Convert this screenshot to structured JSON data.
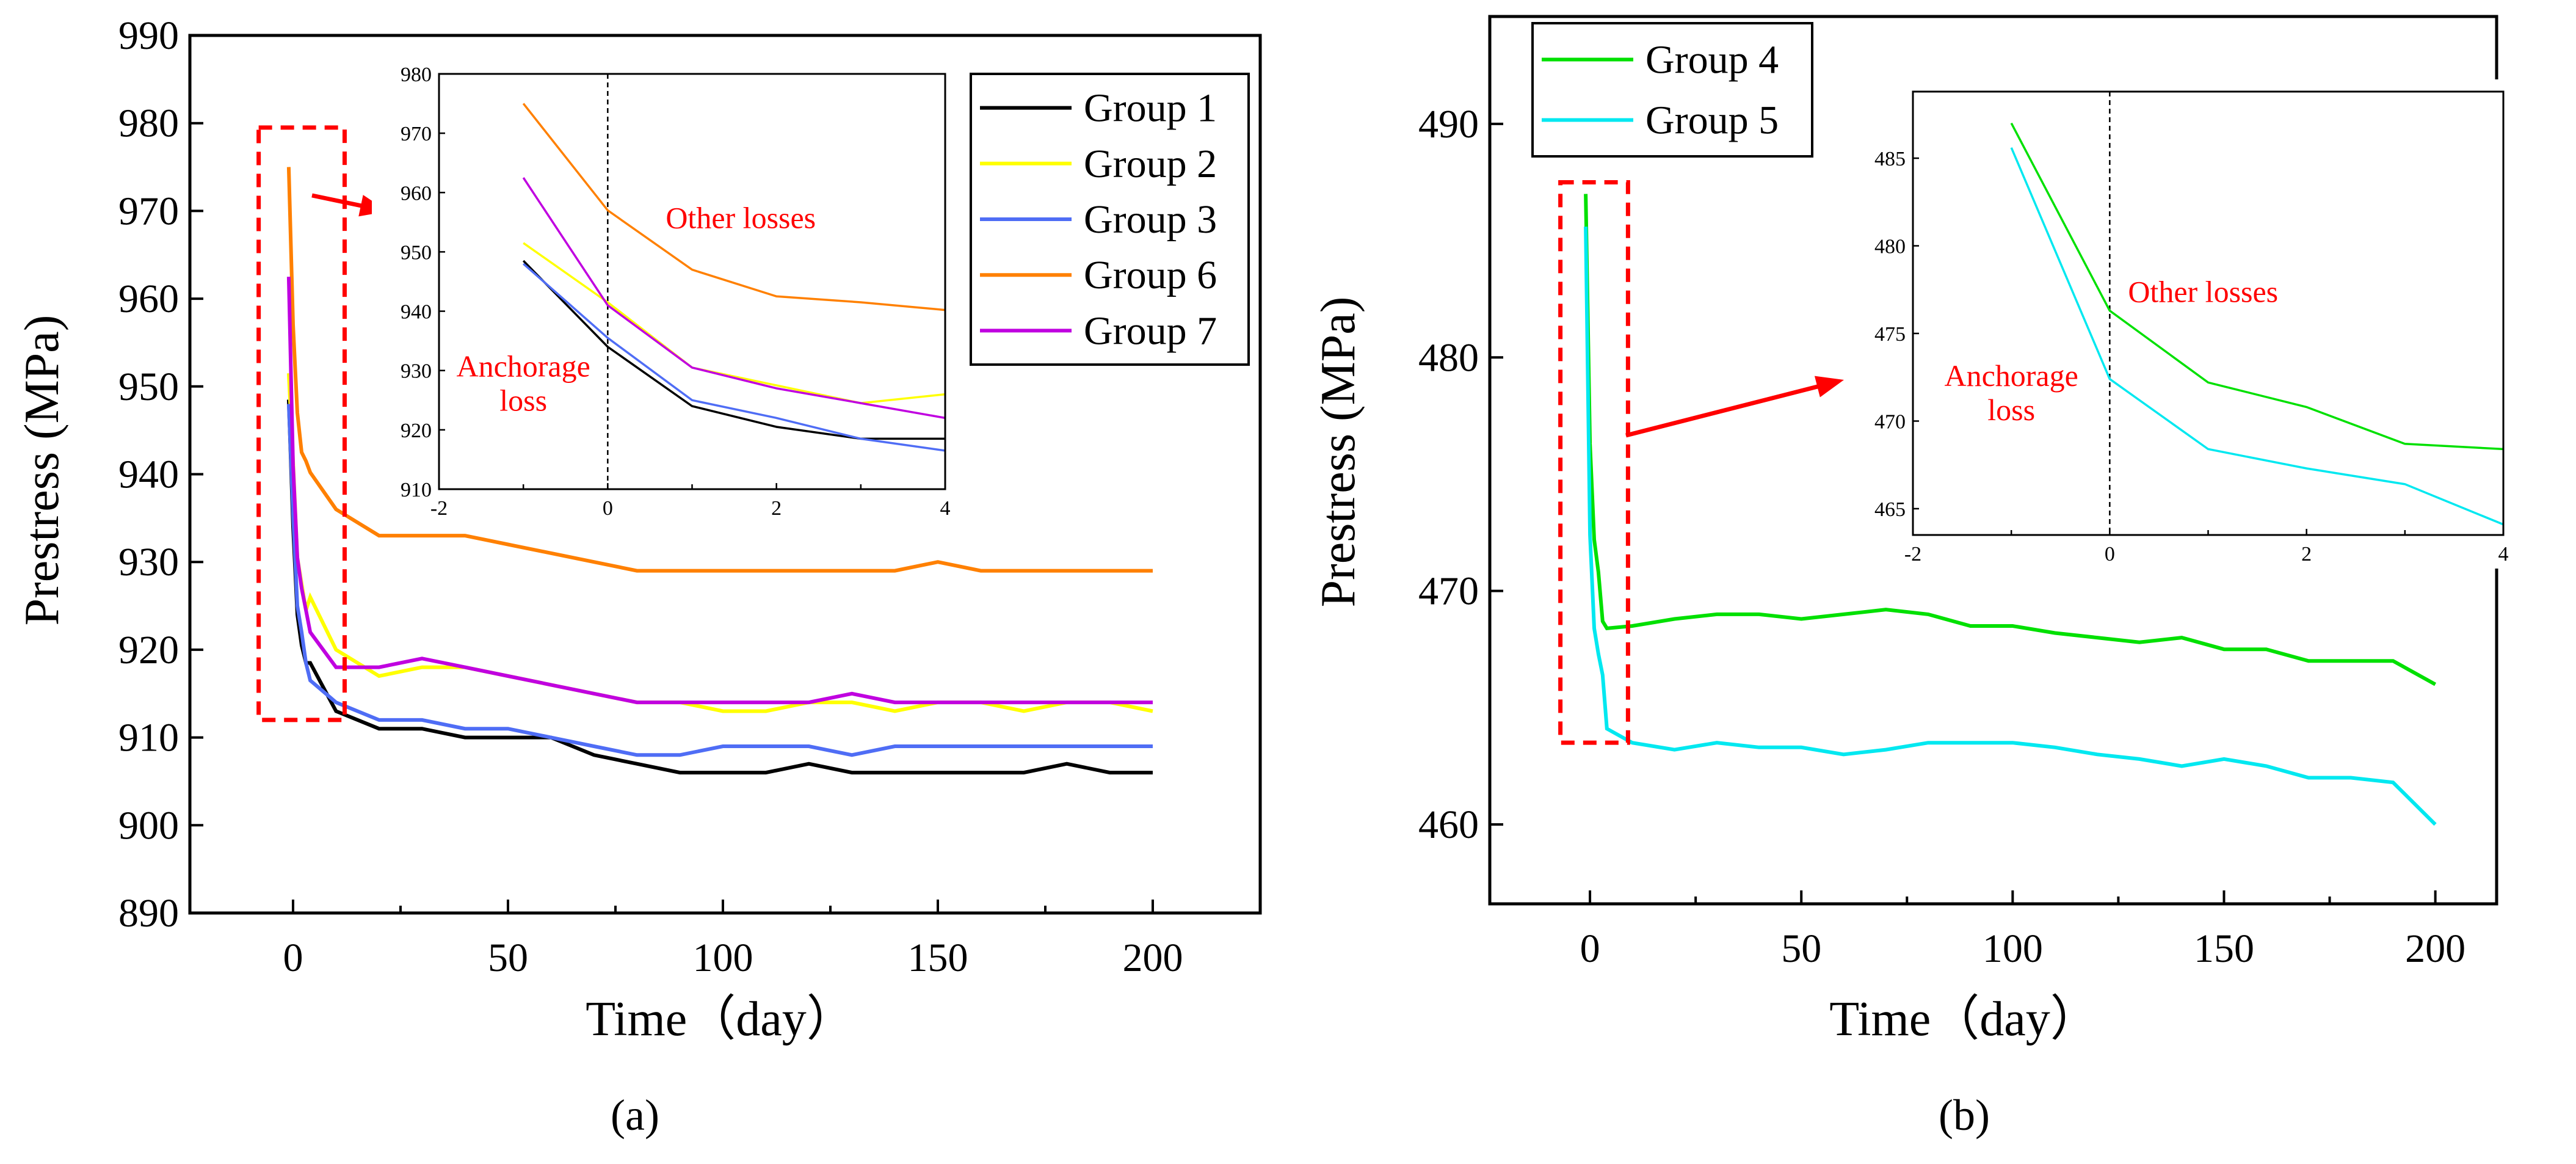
{
  "chart_data": [
    {
      "type": "line",
      "panel_label": "(a)",
      "xlabel": "Time（day）",
      "ylabel": "Prestress (MPa)",
      "xlim": [
        -24,
        225
      ],
      "ylim": [
        890,
        990
      ],
      "xticks": [
        0,
        50,
        100,
        150,
        200
      ],
      "yticks": [
        890,
        900,
        910,
        920,
        930,
        940,
        950,
        960,
        970,
        980,
        990
      ],
      "legend_position": "top-right",
      "x": [
        -1,
        0,
        1,
        2,
        3,
        4,
        10,
        20,
        30,
        40,
        50,
        60,
        70,
        80,
        90,
        100,
        110,
        120,
        130,
        140,
        150,
        160,
        170,
        180,
        190,
        200
      ],
      "series": [
        {
          "name": "Group 1",
          "color": "#000000",
          "values": [
            948.5,
            934,
            924,
            920.5,
            918.5,
            918.5,
            913,
            911,
            911,
            910,
            910,
            910,
            908,
            907,
            906,
            906,
            906,
            907,
            906,
            906,
            906,
            906,
            906,
            907,
            906,
            906
          ]
        },
        {
          "name": "Group 2",
          "color": "#ffff00",
          "values": [
            951.5,
            941.5,
            930.5,
            927.5,
            924.5,
            926,
            920,
            917,
            918,
            918,
            917,
            916,
            915,
            914,
            914,
            913,
            913,
            914,
            914,
            913,
            914,
            914,
            913,
            914,
            914,
            913
          ]
        },
        {
          "name": "Group 3",
          "color": "#4f6df5",
          "values": [
            948,
            935.5,
            925,
            922,
            918.5,
            916.5,
            914,
            912,
            912,
            911,
            911,
            910,
            909,
            908,
            908,
            909,
            909,
            909,
            908,
            909,
            909,
            909,
            909,
            909,
            909,
            909
          ]
        },
        {
          "name": "Group 6",
          "color": "#ff8000",
          "values": [
            975,
            957,
            947,
            942.5,
            941.5,
            940.2,
            936,
            933,
            933,
            933,
            932,
            931,
            930,
            929,
            929,
            929,
            929,
            929,
            929,
            929,
            930,
            929,
            929,
            929,
            929,
            929
          ]
        },
        {
          "name": "Group 7",
          "color": "#c000e0",
          "values": [
            962.5,
            941,
            930.5,
            927,
            924.5,
            922,
            918,
            918,
            919,
            918,
            917,
            916,
            915,
            914,
            914,
            914,
            914,
            914,
            915,
            914,
            914,
            914,
            914,
            914,
            914,
            914
          ]
        }
      ],
      "inset": {
        "xlim": [
          -2,
          4
        ],
        "ylim": [
          910,
          980
        ],
        "xticks": [
          -2,
          0,
          2,
          4
        ],
        "yticks": [
          910,
          920,
          930,
          940,
          950,
          960,
          970,
          980
        ],
        "divider_x": 0,
        "annotations": {
          "left_line1": "Anchorage",
          "left_line2": "loss",
          "right": "Other losses"
        }
      },
      "highlight_box": {
        "x_range": [
          -8,
          12
        ],
        "y_range": [
          912,
          979.5
        ]
      }
    },
    {
      "type": "line",
      "panel_label": "(b)",
      "xlabel": "Time（day）",
      "ylabel": "Prestress (MPa)",
      "xlim": [
        -23.7,
        214.5
      ],
      "ylim": [
        456.6,
        494.6
      ],
      "xticks": [
        0,
        50,
        100,
        150,
        200
      ],
      "yticks": [
        460,
        470,
        480,
        490
      ],
      "legend_position": "top-left",
      "x": [
        -1,
        0,
        1,
        2,
        3,
        4,
        10,
        20,
        30,
        40,
        50,
        60,
        70,
        80,
        90,
        100,
        110,
        120,
        130,
        140,
        150,
        160,
        170,
        180,
        190,
        200
      ],
      "series": [
        {
          "name": "Group 4",
          "color": "#00e000",
          "values": [
            487,
            476.3,
            472.2,
            470.8,
            468.7,
            468.4,
            468.5,
            468.8,
            469,
            469,
            468.8,
            469,
            469.2,
            469,
            468.5,
            468.5,
            468.2,
            468,
            467.8,
            468,
            467.5,
            467.5,
            467,
            467,
            467,
            466
          ]
        },
        {
          "name": "Group 5",
          "color": "#00e8f0",
          "values": [
            485.6,
            472.4,
            468.4,
            467.3,
            466.4,
            464.1,
            463.5,
            463.2,
            463.5,
            463.3,
            463.3,
            463,
            463.2,
            463.5,
            463.5,
            463.5,
            463.3,
            463,
            462.8,
            462.5,
            462.8,
            462.5,
            462,
            462,
            461.8,
            460
          ]
        }
      ],
      "inset": {
        "xlim": [
          -2,
          4
        ],
        "ylim": [
          463.5,
          488.8
        ],
        "xticks": [
          -2,
          0,
          2,
          4
        ],
        "yticks": [
          465,
          470,
          475,
          480,
          485
        ],
        "divider_x": 0,
        "annotations": {
          "left_line1": "Anchorage",
          "left_line2": "loss",
          "right": "Other losses"
        }
      },
      "highlight_box": {
        "x_range": [
          -7,
          9
        ],
        "y_range": [
          463.5,
          487.5
        ]
      }
    }
  ]
}
